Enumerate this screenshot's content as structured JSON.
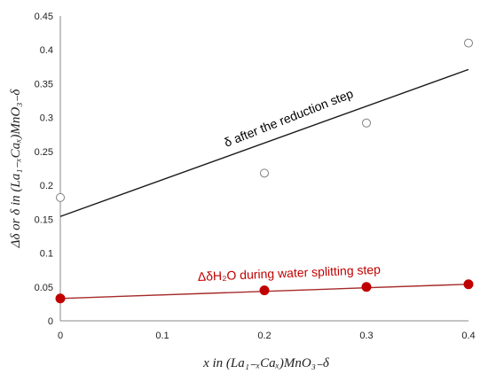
{
  "chart_data": {
    "type": "scatter",
    "xlabel": "x in (La₁₋ₓCaₓ)MnO₃₋δ",
    "ylabel": "Δδ or δ in (La₁₋ₓCaₓ)MnO₃₋δ",
    "xlim": [
      0,
      0.4
    ],
    "ylim": [
      0,
      0.45
    ],
    "x_ticks": [
      "0",
      "0.1",
      "0.2",
      "0.3",
      "0.4"
    ],
    "y_ticks": [
      "0",
      "0.05",
      "0.1",
      "0.15",
      "0.2",
      "0.25",
      "0.3",
      "0.35",
      "0.4",
      "0.45"
    ],
    "grid": false,
    "legend": "none",
    "series": [
      {
        "marker": "open-circle",
        "color": "#808080",
        "x": [
          0,
          0.2,
          0.3,
          0.4
        ],
        "y": [
          0.182,
          0.218,
          0.292,
          0.41
        ],
        "trendline": {
          "x": [
            0,
            0.4
          ],
          "y": [
            0.154,
            0.371
          ],
          "color": "#1a1a1a"
        }
      },
      {
        "marker": "filled-circle",
        "color": "#c00000",
        "x": [
          0,
          0.2,
          0.3,
          0.4
        ],
        "y": [
          0.033,
          0.045,
          0.05,
          0.054
        ],
        "trendline": {
          "x": [
            0,
            0.4
          ],
          "y": [
            0.033,
            0.054
          ],
          "color": "#a52a2a"
        }
      }
    ],
    "annotations": [
      {
        "text": "δ after the reduction step",
        "color": "#000000"
      },
      {
        "text": "ΔδH₂O during water splitting step",
        "color": "#c00000"
      }
    ]
  }
}
